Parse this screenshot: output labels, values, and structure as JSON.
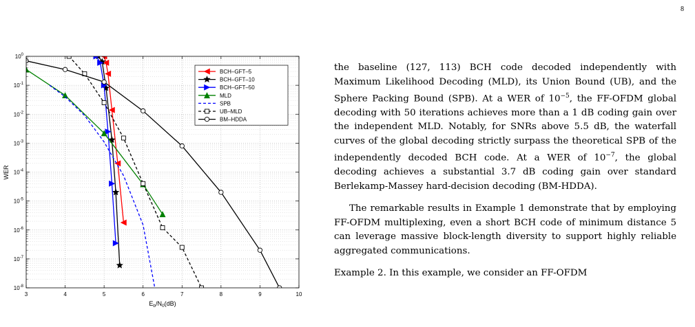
{
  "page": {
    "number": "8"
  },
  "figure": {
    "chart_data": {
      "type": "line",
      "xlabel_main": "E",
      "xlabel_sub1": "b",
      "xlabel_mid": "/N",
      "xlabel_sub2": "0",
      "xlabel_unit": "(dB)",
      "ylabel": "WER",
      "xlim": [
        3,
        10
      ],
      "ylim_exp": [
        -8,
        0
      ],
      "x_ticks": [
        "3",
        "4",
        "5",
        "6",
        "7",
        "8",
        "9",
        "10"
      ],
      "y_tick_base": "10",
      "y_tick_exps": [
        "0",
        "-1",
        "-2",
        "-3",
        "-4",
        "-5",
        "-6",
        "-7",
        "-8"
      ],
      "grid": true,
      "yscale": "log",
      "legend_position": "top-right",
      "series": [
        {
          "name": "BCH–GFT–5",
          "color": "#ff0000",
          "dash": "solid",
          "marker": "triangle-left",
          "x": [
            5.0,
            5.05,
            5.1,
            5.2,
            5.35,
            5.5
          ],
          "y": [
            1.0,
            0.6,
            0.25,
            0.014,
            0.0002,
            1.8e-06
          ]
        },
        {
          "name": "BCH–GFT–10",
          "color": "#000000",
          "dash": "solid",
          "marker": "star",
          "x": [
            4.85,
            4.95,
            5.05,
            5.2,
            5.3,
            5.4
          ],
          "y": [
            1.0,
            0.65,
            0.08,
            0.0013,
            2e-05,
            6e-08
          ]
        },
        {
          "name": "BCH–GFT–50",
          "color": "#0000ff",
          "dash": "solid",
          "marker": "triangle-right",
          "x": [
            4.8,
            4.9,
            5.0,
            5.1,
            5.2,
            5.3
          ],
          "y": [
            1.0,
            0.6,
            0.1,
            0.0025,
            4e-05,
            3.5e-07
          ]
        },
        {
          "name": "MLD",
          "color": "#008000",
          "dash": "solid",
          "marker": "triangle-up",
          "x": [
            3.0,
            4.0,
            5.0,
            6.0,
            6.5
          ],
          "y": [
            0.35,
            0.045,
            0.0022,
            3.8e-05,
            3.5e-06
          ]
        },
        {
          "name": "SPB",
          "color": "#0000ff",
          "dash": "dashed",
          "marker": "none",
          "x": [
            3.6,
            4.0,
            4.5,
            5.0,
            5.5,
            6.0,
            6.3
          ],
          "y": [
            0.1,
            0.04,
            0.009,
            0.0011,
            7.52e-05,
            1.5e-06,
            1e-08
          ]
        },
        {
          "name": "UB–MLD",
          "color": "#000000",
          "dash": "dashed",
          "marker": "square",
          "x": [
            4.1,
            4.5,
            5.0,
            5.5,
            6.0,
            6.5,
            7.0,
            7.5
          ],
          "y": [
            1.0,
            0.25,
            0.025,
            0.0015,
            4e-05,
            1.2e-06,
            2.5e-07,
            1e-08
          ]
        },
        {
          "name": "BM–HDDA",
          "color": "#000000",
          "dash": "solid",
          "marker": "circle",
          "x": [
            3.0,
            4.0,
            5.0,
            6.0,
            7.0,
            8.0,
            9.0,
            9.5
          ],
          "y": [
            0.7,
            0.35,
            0.13,
            0.013,
            0.0008,
            2e-05,
            2e-07,
            1e-08
          ]
        }
      ]
    }
  },
  "text": {
    "para1": "the baseline (127, 113) BCH code decoded independently with Maximum Likelihood Decoding (MLD), its Union Bound (UB), and the Sphere Packing Bound (SPB). At a WER of 10",
    "para1_sup1": "−5",
    "para1_b": ", the FF-OFDM global decoding with 50 iterations achieves more than a 1 dB coding gain over the independent MLD. Notably, for SNRs above 5.5 dB, the waterfall curves of the global decoding strictly surpass the theoretical SPB of the independently decoded BCH code. At a WER of 10",
    "para1_sup2": "−7",
    "para1_c": ", the global decoding achieves a substantial 3.7 dB coding gain over standard Berlekamp-Massey hard-decision decoding (BM-HDDA).",
    "para2": "The remarkable results in Example 1 demonstrate that by employing FF-OFDM multiplexing, even a short BCH code of minimum distance 5 can leverage massive block-length diversity to support highly reliable aggregated communications.",
    "para3": "Example 2. In this example, we consider an FF-OFDM"
  }
}
